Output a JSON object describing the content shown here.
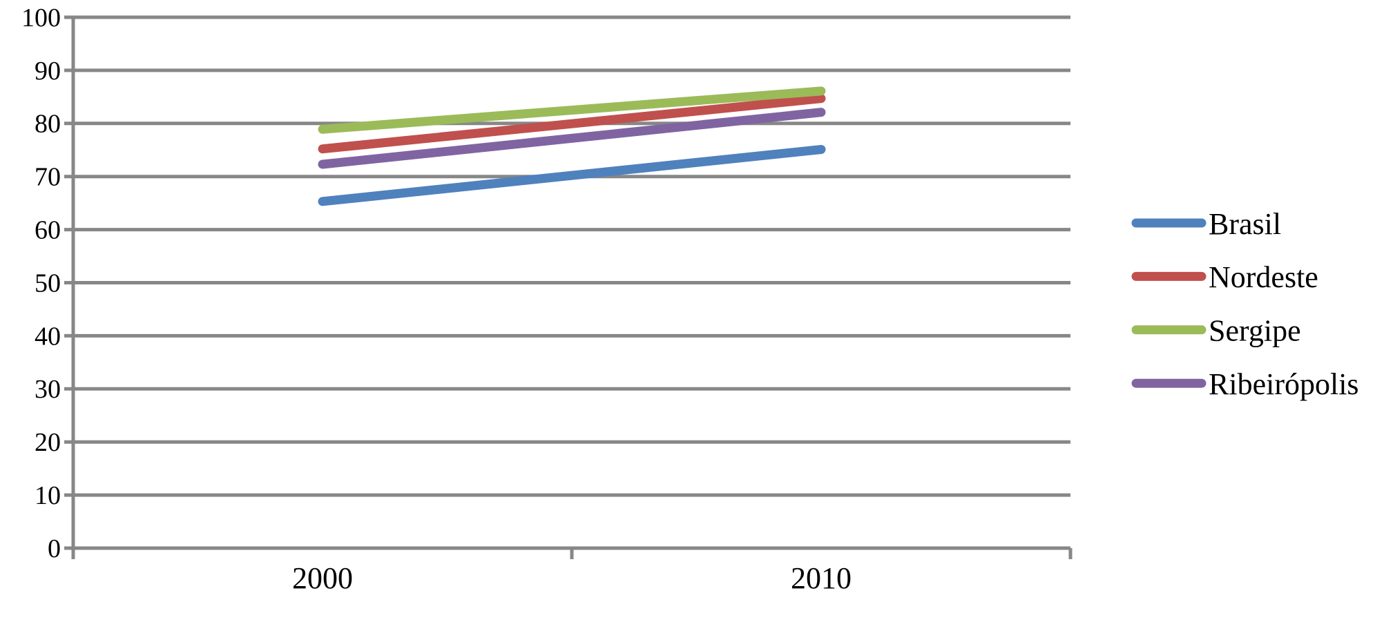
{
  "chart_data": {
    "type": "line",
    "title": "",
    "xlabel": "",
    "ylabel": "",
    "categories": [
      "2000",
      "2010"
    ],
    "series": [
      {
        "name": "Brasil",
        "color": "#4F81BD",
        "values": [
          65.3,
          75.1
        ]
      },
      {
        "name": "Nordeste",
        "color": "#C0504D",
        "values": [
          75.2,
          84.7
        ]
      },
      {
        "name": "Sergipe",
        "color": "#9BBB59",
        "values": [
          78.9,
          86.1
        ]
      },
      {
        "name": "Ribeirópolis",
        "color": "#8064A2",
        "values": [
          72.3,
          82.1
        ]
      }
    ],
    "ylim": [
      0,
      100
    ],
    "ytick_step": 10,
    "ytick_labels": [
      "0",
      "10",
      "20",
      "30",
      "40",
      "50",
      "60",
      "70",
      "80",
      "90",
      "100"
    ],
    "grid": true,
    "legend_position": "right",
    "legend_entries": [
      "Brasil",
      "Nordeste",
      "Sergipe",
      "Ribeirópolis"
    ],
    "colors": {
      "gridline": "#878787",
      "axis": "#878787",
      "text": "#000000",
      "background": "#FFFFFF"
    }
  }
}
